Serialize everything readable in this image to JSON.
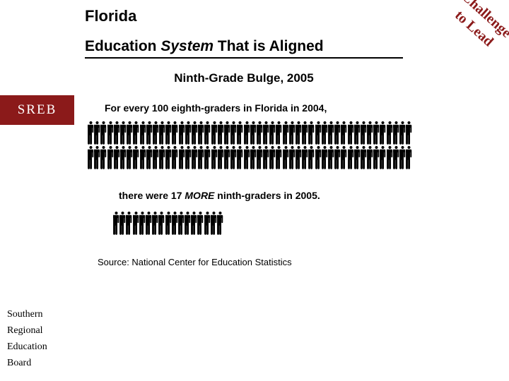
{
  "sidebar": {
    "logo": "SREB",
    "logo_bg": "#8b1a1a",
    "logo_color": "#ffffff",
    "org_lines": [
      "Southern",
      "Regional",
      "Education",
      "Board"
    ]
  },
  "corner": {
    "line1": "Challenge",
    "line2": "to Lead",
    "color": "#8b1a1a",
    "fontsize": 20
  },
  "header": {
    "state": "Florida",
    "title_pre": "Education ",
    "title_italic": "System",
    "title_post": " That is Aligned",
    "subtitle": "Ninth-Grade Bulge, 2005"
  },
  "body": {
    "lead1": "For every 100 eighth-graders in Florida in 2004,",
    "lead2_pre": "there were 17 ",
    "lead2_italic": "MORE",
    "lead2_post": " ninth-graders in 2005.",
    "source": "Source: National Center for Education Statistics"
  },
  "people": {
    "row1_count": 100,
    "row1_per_line": 50,
    "row2_count": 17,
    "row2_per_line": 17,
    "fill": "#000000",
    "person_w": 9,
    "person_h": 35
  }
}
